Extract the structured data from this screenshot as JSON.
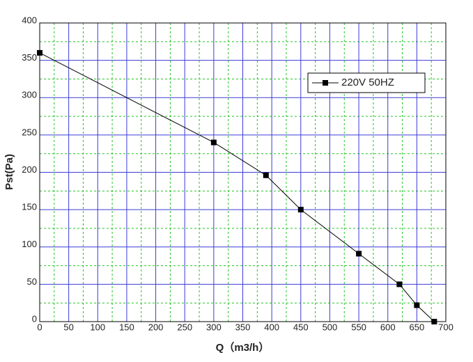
{
  "chart_data": {
    "type": "line",
    "x_label": "Q（m3/h）",
    "y_label": "Pst(Pa)",
    "x": [
      0,
      300,
      390,
      450,
      550,
      620,
      650,
      680
    ],
    "series": [
      {
        "name": "220V 50HZ",
        "color": "#000000",
        "values": [
          360,
          240,
          196,
          150,
          91,
          50,
          22,
          0
        ]
      }
    ],
    "xlim": [
      0,
      700
    ],
    "ylim": [
      0,
      400
    ],
    "xticks": [
      0,
      50,
      100,
      150,
      200,
      250,
      300,
      350,
      400,
      450,
      500,
      550,
      600,
      650,
      700
    ],
    "yticks": [
      0,
      50,
      100,
      150,
      200,
      250,
      300,
      350,
      400
    ],
    "xminorticks": [
      25,
      75,
      125,
      175,
      225,
      275,
      325,
      375,
      425,
      475,
      525,
      575,
      625,
      675
    ],
    "yminorticks": [
      25,
      75,
      125,
      175,
      225,
      275,
      325,
      375
    ],
    "grid": true,
    "grid_color": "#3b3bd6",
    "minor_grid_color": "#22c322",
    "legend": "upper right"
  }
}
